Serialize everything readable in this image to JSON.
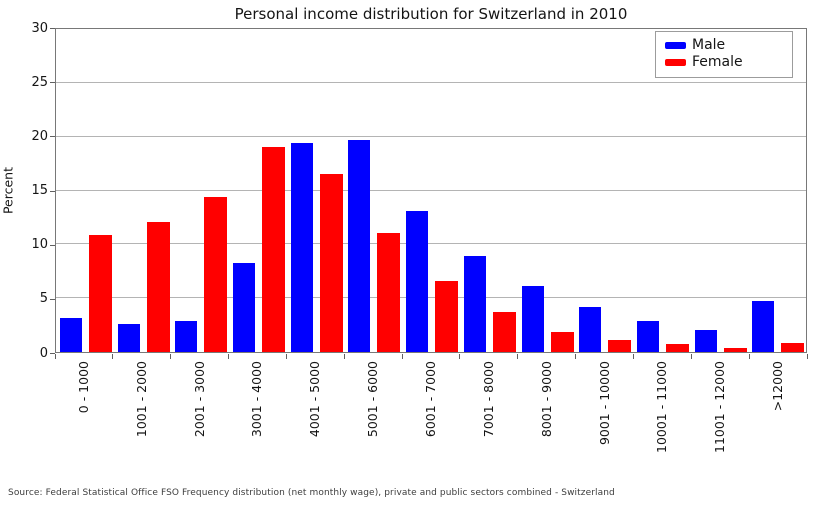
{
  "source_note": "Source: Federal Statistical Office FSO Frequency distribution (net monthly wage), private and public sectors combined - Switzerland",
  "chart_data": {
    "type": "bar",
    "title": "Personal income distribution for Switzerland in 2010",
    "xlabel": "",
    "ylabel": "Percent",
    "ylim": [
      0,
      30
    ],
    "yticks": [
      0,
      5,
      10,
      15,
      20,
      25,
      30
    ],
    "grid": true,
    "legend_position": "top-right",
    "categories": [
      "0 - 1000",
      "1001 - 2000",
      "2001 - 3000",
      "3001 - 4000",
      "4001 - 5000",
      "5001 - 6000",
      "6001 - 7000",
      "7001 - 8000",
      "8001 - 9000",
      "9001 - 10000",
      "10001 - 11000",
      "11001 - 12000",
      ">12000"
    ],
    "series": [
      {
        "name": "Male",
        "color": "#0000ff",
        "values": [
          3.2,
          2.6,
          2.9,
          8.3,
          19.4,
          19.7,
          13.1,
          8.9,
          6.1,
          4.2,
          2.9,
          2.0,
          4.7
        ]
      },
      {
        "name": "Female",
        "color": "#ff0000",
        "values": [
          10.9,
          12.1,
          14.4,
          19.0,
          16.5,
          11.1,
          6.6,
          3.7,
          1.9,
          1.1,
          0.7,
          0.4,
          0.8
        ]
      }
    ]
  }
}
